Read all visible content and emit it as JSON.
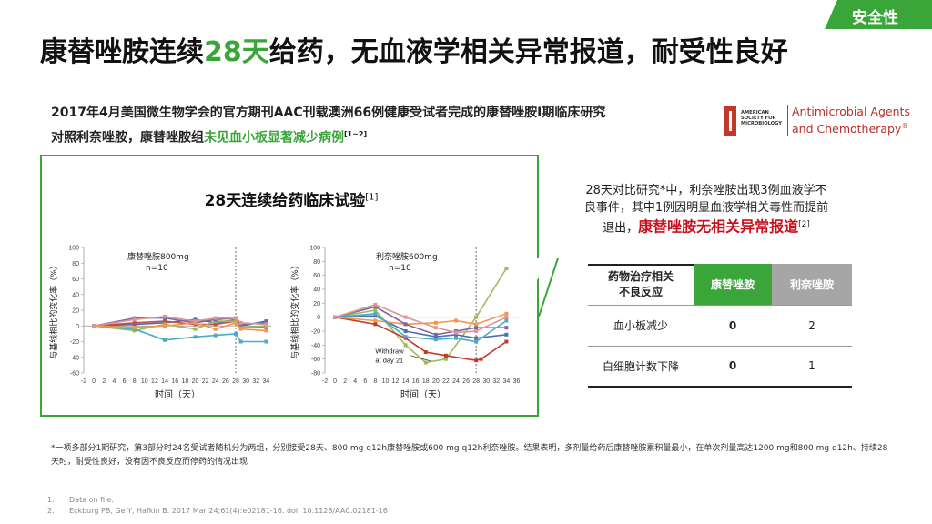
{
  "tag": "安全性",
  "title": {
    "part1": "康替唑胺连续",
    "highlight": "28天",
    "part2": "给药，无血液学相关异常报道，耐受性良好"
  },
  "intro": {
    "line1": "2017年4月美国微生物学会的官方期刊AAC刊载澳洲66例健康受试者完成的康替唑胺I期临床研究",
    "line2_prefix": "对照利奈唑胺，康替唑胺组",
    "line2_highlight": "未见血小板显著减少病例",
    "line2_ref": "[1~2]"
  },
  "journal": {
    "society_lines": [
      "AMERICAN",
      "SOCIETY FOR",
      "MICROBIOLOGY"
    ],
    "name_line1": "Antimicrobial Agents",
    "name_line2": "and Chemotherapy",
    "reg": "®"
  },
  "panel": {
    "title": "28天连续给药临床试验",
    "ref": "[1]"
  },
  "chart_data": [
    {
      "type": "line",
      "label": "康替唑胺800mg",
      "n": "n=10",
      "ylabel": "与基线相比的变化率（%）",
      "xlabel": "时间（天）",
      "x_ticks": [
        -2,
        0,
        2,
        4,
        6,
        8,
        10,
        12,
        14,
        16,
        18,
        20,
        22,
        24,
        26,
        28,
        30,
        32,
        34
      ],
      "y_ticks": [
        100,
        80,
        60,
        40,
        20,
        0,
        -20,
        -40,
        -60
      ],
      "ylim": [
        -60,
        100
      ],
      "xlim": [
        -2,
        35
      ],
      "vline": 28,
      "series": [
        {
          "color": "#4a6fb5",
          "x": [
            0,
            8,
            14,
            20,
            24,
            28,
            29,
            34
          ],
          "y": [
            0,
            2,
            4,
            8,
            4,
            8,
            0,
            6
          ]
        },
        {
          "color": "#c0504d",
          "x": [
            0,
            8,
            14,
            20,
            24,
            28,
            29,
            34
          ],
          "y": [
            0,
            4,
            6,
            2,
            2,
            6,
            -2,
            -2
          ]
        },
        {
          "color": "#9bbb59",
          "x": [
            0,
            8,
            14,
            20,
            24,
            28,
            29,
            34
          ],
          "y": [
            0,
            -6,
            2,
            -4,
            6,
            6,
            -2,
            0
          ]
        },
        {
          "color": "#8064a2",
          "x": [
            0,
            8,
            14,
            20,
            24,
            28,
            29,
            34
          ],
          "y": [
            0,
            10,
            10,
            4,
            8,
            10,
            2,
            4
          ]
        },
        {
          "color": "#4bacc6",
          "x": [
            0,
            8,
            14,
            20,
            24,
            28,
            29,
            34
          ],
          "y": [
            0,
            -4,
            -18,
            -14,
            -12,
            -10,
            -20,
            -20
          ]
        },
        {
          "color": "#f79646",
          "x": [
            0,
            8,
            14,
            20,
            24,
            28,
            29,
            34
          ],
          "y": [
            0,
            -2,
            0,
            4,
            -4,
            4,
            -4,
            -6
          ]
        },
        {
          "color": "#d99694",
          "x": [
            0,
            8,
            14,
            20,
            24,
            28,
            29,
            34
          ],
          "y": [
            0,
            8,
            12,
            6,
            10,
            10,
            4,
            2
          ]
        }
      ]
    },
    {
      "type": "line",
      "label": "利奈唑胺600mg",
      "n": "n=10",
      "ylabel": "与基线相比的变化率（%）",
      "xlabel": "时间（天）",
      "x_ticks": [
        -2,
        0,
        2,
        4,
        6,
        8,
        10,
        12,
        14,
        16,
        18,
        20,
        22,
        24,
        26,
        28,
        30,
        32,
        34,
        36
      ],
      "y_ticks": [
        100,
        80,
        60,
        40,
        20,
        0,
        -20,
        -40,
        -60,
        -80
      ],
      "ylim": [
        -80,
        100
      ],
      "xlim": [
        -2,
        37
      ],
      "vline": 28,
      "annotation": "Withdraw\nat day 21",
      "series": [
        {
          "color": "#9bbb59",
          "x": [
            0,
            8,
            14,
            18,
            22,
            28,
            34
          ],
          "y": [
            0,
            10,
            -40,
            -65,
            -60,
            0,
            70
          ]
        },
        {
          "color": "#c0392b",
          "x": [
            0,
            8,
            14,
            18,
            22,
            28,
            29,
            34
          ],
          "y": [
            0,
            -10,
            -30,
            -50,
            -55,
            -62,
            -60,
            -35
          ]
        },
        {
          "color": "#4a6fb5",
          "x": [
            0,
            8,
            14,
            20,
            24,
            28,
            34
          ],
          "y": [
            0,
            2,
            -20,
            -28,
            -25,
            -30,
            -25
          ]
        },
        {
          "color": "#f79646",
          "x": [
            0,
            8,
            14,
            20,
            24,
            28,
            34
          ],
          "y": [
            0,
            -5,
            -10,
            -8,
            -5,
            -10,
            5
          ]
        },
        {
          "color": "#8064a2",
          "x": [
            0,
            8,
            14,
            20,
            24,
            28,
            34
          ],
          "y": [
            0,
            15,
            -10,
            -25,
            -20,
            -15,
            -15
          ]
        },
        {
          "color": "#4bacc6",
          "x": [
            0,
            8,
            14,
            20,
            24,
            28,
            34
          ],
          "y": [
            0,
            5,
            -28,
            -32,
            -30,
            -35,
            -5
          ]
        },
        {
          "color": "#d99694",
          "x": [
            0,
            8,
            14,
            20,
            24,
            28,
            34
          ],
          "y": [
            0,
            18,
            0,
            -15,
            -22,
            -20,
            0
          ]
        }
      ]
    }
  ],
  "note": {
    "line1": "28天对比研究*中，利奈唑胺出现3例血液学不",
    "line2": "良事件，其中1例因明显血液学相关毒性而提前",
    "line3_prefix": "退出，",
    "line3_red": "康替唑胺无相关异常报道",
    "line3_ref": "[2]"
  },
  "ae_table": {
    "headers": [
      "药物治疗相关\n不良反应",
      "康替唑胺",
      "利奈唑胺"
    ],
    "rows": [
      {
        "label": "血小板减少",
        "a": "0",
        "b": "2"
      },
      {
        "label": "白细胞计数下降",
        "a": "0",
        "b": "1"
      }
    ]
  },
  "footnote": "*一项多部分1期研究，第3部分时24名受试者随机分为两组，分别接受28天、800 mg q12h康替唑胺或600 mg q12h利奈唑胺。结果表明，多剂量给药后康替唑胺累积量最小，在单次剂量高达1200 mg和800 mg q12h、持续28天时，耐受性良好，没有因不良反应而停药的情况出现",
  "references": [
    {
      "num": "1.",
      "text": "Data on file."
    },
    {
      "num": "2.",
      "text": "Eckburg PB, Ge Y, Hafkin B. 2017 Mar 24;61(4):e02181-16. doi: 10.1128/AAC.02181-16"
    }
  ],
  "colors": {
    "accent_green": "#3aa63a",
    "red": "#c8101e",
    "gray": "#a6a6a6"
  }
}
